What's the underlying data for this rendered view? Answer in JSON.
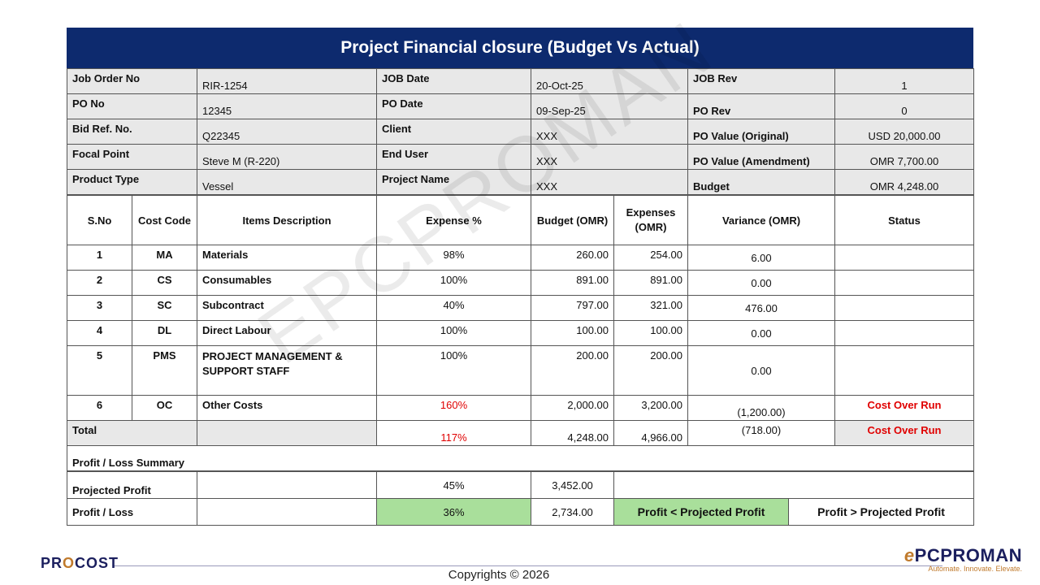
{
  "title": "Project Financial closure (Budget Vs Actual)",
  "info": {
    "job_order_no_label": "Job Order No",
    "job_order_no": "RIR-1254",
    "job_date_label": "JOB Date",
    "job_date": "20-Oct-25",
    "job_rev_label": "JOB Rev",
    "job_rev": "1",
    "po_no_label": "PO No",
    "po_no": "12345",
    "po_date_label": "PO Date",
    "po_date": "09-Sep-25",
    "po_rev_label": "PO Rev",
    "po_rev": "0",
    "bid_ref_label": "Bid Ref. No.",
    "bid_ref": "Q22345",
    "client_label": "Client",
    "client": "XXX",
    "po_value_orig_label": "PO Value (Original)",
    "po_value_orig": "USD 20,000.00",
    "focal_point_label": "Focal Point",
    "focal_point": "Steve M (R-220)",
    "end_user_label": "End User",
    "end_user": "XXX",
    "po_value_amend_label": "PO Value (Amendment)",
    "po_value_amend": "OMR 7,700.00",
    "product_type_label": "Product Type",
    "product_type": "Vessel",
    "project_name_label": "Project Name",
    "project_name": "XXX",
    "budget_label": "Budget",
    "budget": "OMR 4,248.00"
  },
  "headers": {
    "sno": "S.No",
    "cost_code": "Cost Code",
    "items": "Items Description",
    "expense_pct": "Expense %",
    "budget": "Budget (OMR)",
    "expenses": "Expenses (OMR)",
    "variance": "Variance (OMR)",
    "status": "Status"
  },
  "rows": [
    {
      "sno": "1",
      "code": "MA",
      "desc": "Materials",
      "pct": "98%",
      "budget": "260.00",
      "expenses": "254.00",
      "variance": "6.00",
      "status": ""
    },
    {
      "sno": "2",
      "code": "CS",
      "desc": "Consumables",
      "pct": "100%",
      "budget": "891.00",
      "expenses": "891.00",
      "variance": "0.00",
      "status": ""
    },
    {
      "sno": "3",
      "code": "SC",
      "desc": "Subcontract",
      "pct": "40%",
      "budget": "797.00",
      "expenses": "321.00",
      "variance": "476.00",
      "status": ""
    },
    {
      "sno": "4",
      "code": "DL",
      "desc": "Direct Labour",
      "pct": "100%",
      "budget": "100.00",
      "expenses": "100.00",
      "variance": "0.00",
      "status": ""
    },
    {
      "sno": "5",
      "code": "PMS",
      "desc": "PROJECT MANAGEMENT & SUPPORT STAFF",
      "pct": "100%",
      "budget": "200.00",
      "expenses": "200.00",
      "variance": "0.00",
      "status": ""
    },
    {
      "sno": "6",
      "code": "OC",
      "desc": "Other Costs",
      "pct": "160%",
      "budget": "2,000.00",
      "expenses": "3,200.00",
      "variance": "(1,200.00)",
      "status": "Cost Over Run"
    }
  ],
  "total": {
    "label": "Total",
    "pct": "117%",
    "budget": "4,248.00",
    "expenses": "4,966.00",
    "variance": "(718.00)",
    "status": "Cost Over Run"
  },
  "summary": {
    "heading": "Profit / Loss Summary",
    "projected_label": "Projected Profit",
    "projected_pct": "45%",
    "projected_value": "3,452.00",
    "pl_label": "Profit / Loss",
    "pl_pct": "36%",
    "pl_value": "2,734.00",
    "less_label": "Profit < Projected Profit",
    "more_label": "Profit > Projected Profit"
  },
  "watermark": "EPCPROMAN",
  "footer": {
    "left_logo_p": "PR",
    "left_logo_o": "O",
    "left_logo_rest": "COST",
    "copyright": "Copyrights © 2026",
    "right_logo_e": "e",
    "right_logo_rest": "PCPROMAN",
    "tagline": "Automate. Innovate. Elevate."
  },
  "colors": {
    "title_bg": "#0d2a6e",
    "green": "#a9df9b",
    "red": "#e00000",
    "grey": "#e8e8e8"
  }
}
